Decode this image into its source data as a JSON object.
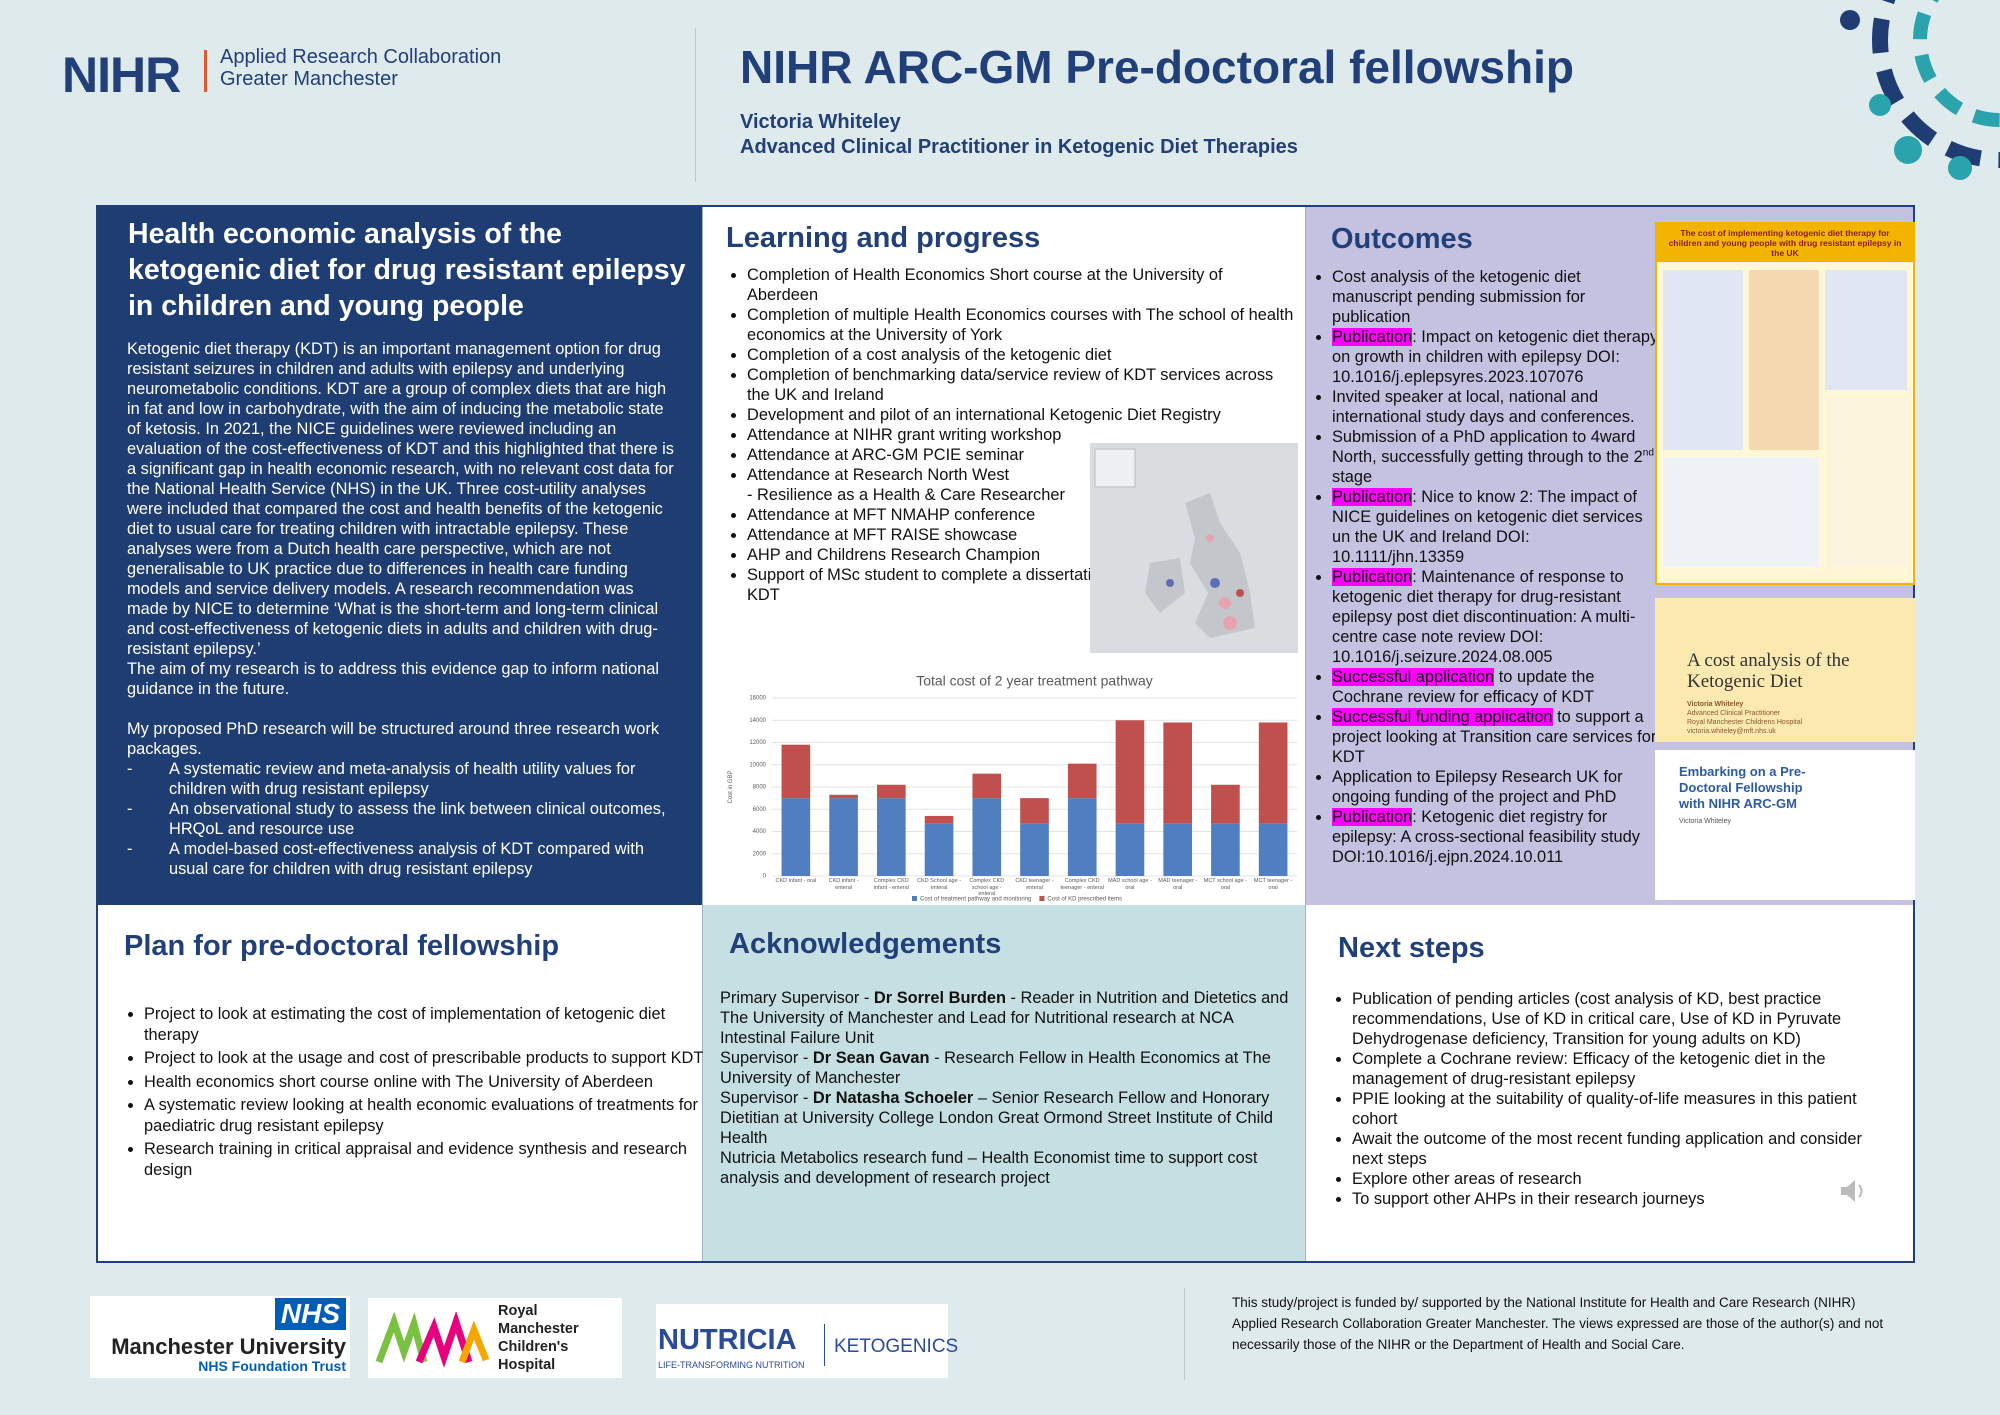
{
  "header": {
    "logo_mark": "NIHR",
    "logo_line1": "Applied Research Collaboration",
    "logo_line2": "Greater Manchester",
    "title": "NIHR ARC-GM Pre-doctoral fellowship",
    "author": "Victoria Whiteley",
    "role": "Advanced Clinical Practitioner in Ketogenic Diet Therapies"
  },
  "intro": {
    "title": "Health economic analysis of the ketogenic diet for drug resistant epilepsy in children and young people",
    "paragraphs": [
      "Ketogenic diet therapy (KDT) is an important management option for drug resistant seizures in children and adults with epilepsy and underlying neurometabolic conditions. KDT are a group of complex diets that are high in fat and low in carbohydrate, with the aim of inducing the metabolic state of ketosis. In 2021, the NICE guidelines were reviewed including an evaluation of the cost-effectiveness of KDT and this highlighted that there is a significant gap in health economic research, with no relevant cost data for the National Health Service (NHS) in the UK. Three cost-utility analyses were included that compared the cost and health benefits of the ketogenic diet to usual care for treating children with intractable epilepsy. These analyses were from a Dutch health care perspective, which are not generalisable to UK practice due to differences in health care funding models and service delivery models. A research recommendation was made by NICE to determine ‘What is the short-term and long-term clinical and cost-effectiveness of ketogenic diets in adults and children with drug-resistant epilepsy.’",
      "The aim of my research is to address this evidence gap to inform national guidance in the future.",
      "My proposed PhD research will be structured around three research work packages."
    ],
    "work_packages": [
      "A systematic review and meta-analysis of health utility values for children with drug resistant epilepsy",
      "An observational study to assess the link between clinical outcomes, HRQoL and resource use",
      "A model-based cost-effectiveness analysis of KDT compared with usual care for children with drug resistant epilepsy"
    ]
  },
  "learning": {
    "title": "Learning and progress",
    "items": [
      "Completion of Health Economics Short course at the University of Aberdeen",
      "Completion of multiple Health Economics courses with The school of health economics at the University of York",
      "Completion of a cost analysis of the ketogenic diet",
      "Completion of benchmarking data/service review of KDT services across the UK and Ireland",
      "Development and pilot of an international Ketogenic Diet Registry",
      "Attendance at NIHR grant writing workshop",
      "Attendance at ARC-GM PCIE seminar",
      "Attendance at Research North West",
      "- Resilience as a Health & Care Researcher",
      "Attendance at MFT NMAHP conference",
      "Attendance at MFT RAISE showcase",
      "AHP and Childrens Research Champion",
      "Support of MSc student to complete a dissertation on the cost of food on KDT"
    ],
    "chart": {
      "type": "bar",
      "stacked": true,
      "title": "Total cost of 2 year treatment pathway",
      "y_label": "Cost in GBP",
      "categories": [
        "CKD infant - oral",
        "CKD infant - enteral",
        "Complex CKD infant - enteral",
        "CKD School age - enteral",
        "Complex CKD school age - enteral",
        "CKD teenager - enteral",
        "Complex CKD teenager - enteral",
        "MAD school age - oral",
        "MAD teenager - oral",
        "MCT school age - oral",
        "MCT teenager - oral"
      ],
      "series": [
        {
          "name": "Cost of treatment pathway and monitoring",
          "color": "#4f7fc0",
          "values": [
            7000,
            7000,
            7000,
            4700,
            7000,
            4700,
            7000,
            4700,
            4700,
            4700,
            4700
          ]
        },
        {
          "name": "Cost of KD prescribed items",
          "color": "#c0504d",
          "values": [
            4800,
            300,
            1200,
            700,
            2200,
            2300,
            3100,
            9300,
            9100,
            3500,
            9100
          ]
        }
      ],
      "ylim": [
        0,
        16000
      ],
      "yticks": [
        0,
        2000,
        4000,
        6000,
        8000,
        10000,
        12000,
        14000,
        16000
      ],
      "grid": true
    }
  },
  "outcomes": {
    "title": "Outcomes",
    "items": [
      [
        {
          "t": "Cost analysis of the ketogenic diet manuscript pending submission for publication"
        }
      ],
      [
        {
          "t": "Publication",
          "hl": true
        },
        {
          "t": ": Impact on ketogenic diet therapy on growth in children with epilepsy DOI: 10.1016/j.eplepsyres.2023.107076"
        }
      ],
      [
        {
          "t": "Invited speaker at local, national and international study days and conferences."
        }
      ],
      [
        {
          "t": "Submission of a PhD application to 4ward North, successfully getting through to the 2"
        },
        {
          "t": "nd",
          "sup": true
        },
        {
          "t": " stage"
        }
      ],
      [
        {
          "t": "Publication",
          "hl": true
        },
        {
          "t": ": Nice to know 2: The impact of NICE guidelines on ketogenic diet services un the UK and Ireland DOI: 10.1111/jhn.13359"
        }
      ],
      [
        {
          "t": "Publication",
          "hl": true
        },
        {
          "t": ": Maintenance of response to ketogenic diet therapy for drug-resistant epilepsy post diet discontinuation: A multi-centre case note review DOI: 10.1016/j.seizure.2024.08.005"
        }
      ],
      [
        {
          "t": "Successful application",
          "hl": true
        },
        {
          "t": " to update the Cochrane review for efficacy of KDT"
        }
      ],
      [
        {
          "t": "Successful funding application",
          "hl": true
        },
        {
          "t": " to support a project looking at Transition care services for KDT"
        }
      ],
      [
        {
          "t": "Application to Epilepsy Research UK for ongoing funding of the project and PhD"
        }
      ],
      [
        {
          "t": "Publication",
          "hl": true
        },
        {
          "t": ": Ketogenic diet registry for epilepsy: A cross-sectional feasibility study DOI:10.1016/j.ejpn.2024.10.011"
        }
      ]
    ],
    "thumb_poster_title": "The cost of implementing ketogenic diet therapy for children and young people with drug resistant epilepsy in the UK",
    "cover": {
      "title": "A cost analysis of the Ketogenic Diet",
      "author": "Victoria Whiteley",
      "role": "Advanced Clinical Practitioner",
      "org": "Royal Manchester Childrens Hospital",
      "email": "victoria.whiteley@mft.nhs.uk"
    },
    "slide": {
      "title": "Embarking on a Pre-Doctoral Fellowship with NIHR ARC-GM",
      "author": "Victoria Whiteley"
    }
  },
  "plan": {
    "title": "Plan for pre-doctoral fellowship",
    "items": [
      "Project to look at estimating the cost of implementation of ketogenic diet therapy",
      "Project to look at the usage and cost of prescribable products to support KDT",
      "Health economics short course online with The University of Aberdeen",
      "A systematic review looking at health economic evaluations of treatments for paediatric drug resistant epilepsy",
      "Research training in critical appraisal and evidence synthesis and research design"
    ]
  },
  "acknowledgements": {
    "title": "Acknowledgements",
    "lines": [
      [
        {
          "t": "Primary Supervisor - "
        },
        {
          "t": "Dr Sorrel Burden",
          "b": true
        },
        {
          "t": " - Reader in Nutrition and Dietetics and The University of Manchester and Lead for Nutritional research at NCA Intestinal Failure Unit"
        }
      ],
      [
        {
          "t": "Supervisor - "
        },
        {
          "t": "Dr Sean Gavan",
          "b": true
        },
        {
          "t": " - Research Fellow in Health Economics at The University of Manchester"
        }
      ],
      [
        {
          "t": "Supervisor - "
        },
        {
          "t": "Dr Natasha Schoeler",
          "b": true
        },
        {
          "t": " – Senior Research Fellow and Honorary Dietitian at University College London Great Ormond Street Institute of Child Health"
        }
      ],
      [
        {
          "t": "Nutricia Metabolics research fund – Health Economist time to support cost analysis and development of research project"
        }
      ]
    ]
  },
  "next_steps": {
    "title": "Next steps",
    "items": [
      "Publication of pending articles (cost analysis of KD, best practice recommendations, Use of KD in critical care, Use of KD in Pyruvate Dehydrogenase deficiency, Transition for young adults on KD)",
      "Complete a Cochrane review: Efficacy of the ketogenic diet in the management of drug-resistant epilepsy",
      "PPIE looking at the suitability of quality-of-life measures in this patient cohort",
      "Await the outcome of the most recent funding application and consider next steps",
      "Explore other areas of research",
      "To support other AHPs in their research journeys"
    ]
  },
  "footer": {
    "nhs": "NHS",
    "mft_name": "Manchester University",
    "mft_sub": "NHS Foundation Trust",
    "rmch": [
      "Royal",
      "Manchester",
      "Children's",
      "Hospital"
    ],
    "nutricia": "NUTRICIA",
    "nutricia_tag": "LIFE-TRANSFORMING NUTRITION",
    "ketogenics": "KETOGENICS",
    "funding": "This study/project is funded by/ supported by the National Institute for Health and Care Research (NIHR) Applied Research Collaboration Greater Manchester. The views expressed are those of the author(s) and not necessarily those of the NIHR or the Department of Health and Social Care."
  }
}
